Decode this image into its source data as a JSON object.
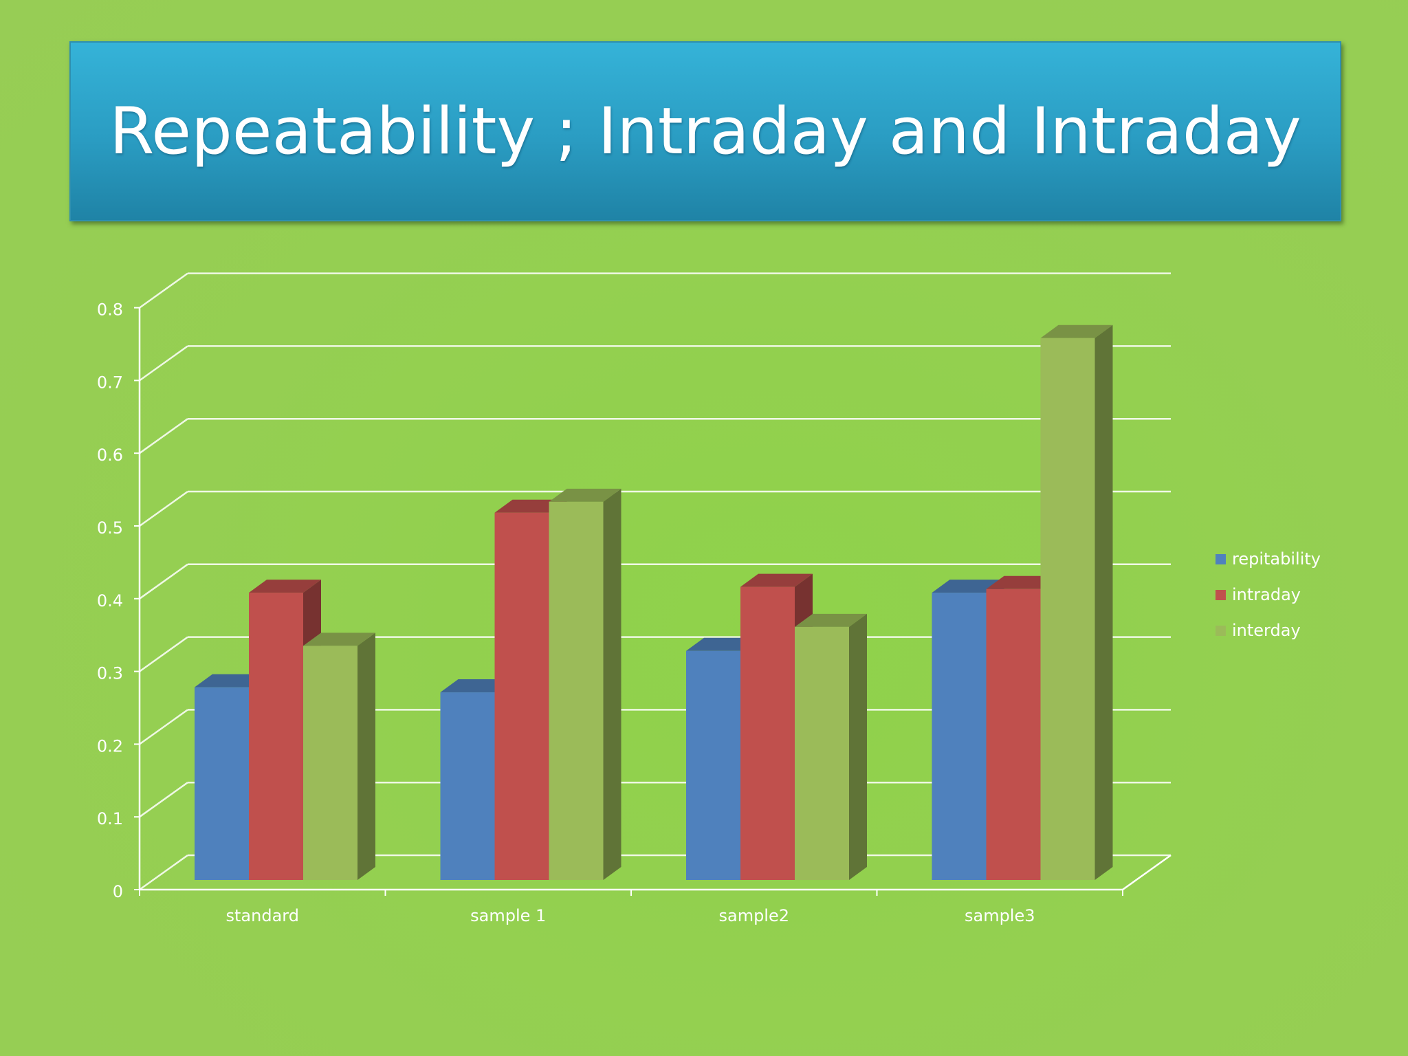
{
  "slide": {
    "title": "Repeatability ; Intraday and Intraday"
  },
  "colors": {
    "background": "#92d050",
    "banner": "#2a9cc2",
    "repitability": "#4f81bd",
    "intraday": "#c0504d",
    "interday": "#9bbb59",
    "gridline": "#ffffff"
  },
  "chart_data": {
    "type": "bar",
    "title": "",
    "xlabel": "",
    "ylabel": "",
    "ylim": [
      0,
      0.8
    ],
    "yticks": [
      "0",
      "0.1",
      "0.2",
      "0.3",
      "0.4",
      "0.5",
      "0.6",
      "0.7",
      "0.8"
    ],
    "categories": [
      "standard",
      "sample 1",
      "sample2",
      "sample3"
    ],
    "series": [
      {
        "name": "repitability",
        "values": [
          0.265,
          0.258,
          0.315,
          0.395
        ]
      },
      {
        "name": "intraday",
        "values": [
          0.395,
          0.505,
          0.403,
          0.4
        ]
      },
      {
        "name": "interday",
        "values": [
          0.322,
          0.52,
          0.348,
          0.745
        ]
      }
    ],
    "legend": "right",
    "grid": true
  }
}
